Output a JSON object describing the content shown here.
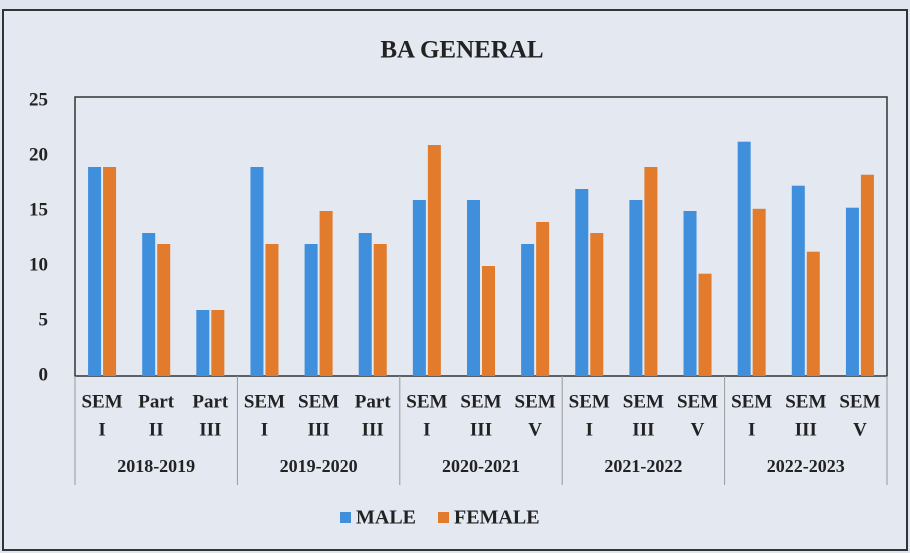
{
  "chart_data": {
    "type": "bar",
    "title": "BA GENERAL",
    "groups": [
      {
        "name": "2018-2019",
        "categories": [
          [
            "SEM",
            "I"
          ],
          [
            "Part",
            "II"
          ],
          [
            "Part",
            "III"
          ]
        ]
      },
      {
        "name": "2019-2020",
        "categories": [
          [
            "SEM",
            "I"
          ],
          [
            "SEM",
            "III"
          ],
          [
            "Part",
            "III"
          ]
        ]
      },
      {
        "name": "2020-2021",
        "categories": [
          [
            "SEM",
            "I"
          ],
          [
            "SEM",
            "III"
          ],
          [
            "SEM",
            "V"
          ]
        ]
      },
      {
        "name": "2021-2022",
        "categories": [
          [
            "SEM",
            "I"
          ],
          [
            "SEM",
            "III"
          ],
          [
            "SEM",
            "V"
          ]
        ]
      },
      {
        "name": "2022-2023",
        "categories": [
          [
            "SEM",
            "I"
          ],
          [
            "SEM",
            "III"
          ],
          [
            "SEM",
            "V"
          ]
        ]
      }
    ],
    "series": [
      {
        "name": "MALE",
        "color": "#3f8fdc",
        "values": [
          19,
          13,
          6,
          19,
          12,
          13,
          16,
          16,
          12,
          17,
          16,
          15,
          21.3,
          17.3,
          15.3
        ]
      },
      {
        "name": "FEMALE",
        "color": "#e27c2c",
        "values": [
          19,
          12,
          6,
          12,
          15,
          12,
          21,
          10,
          14,
          13,
          19,
          9.3,
          15.2,
          11.3,
          18.3
        ]
      }
    ],
    "ylim": [
      0,
      25
    ],
    "yticks": [
      0,
      5,
      10,
      15,
      20,
      25
    ],
    "grid": false,
    "legend": "bottom"
  }
}
